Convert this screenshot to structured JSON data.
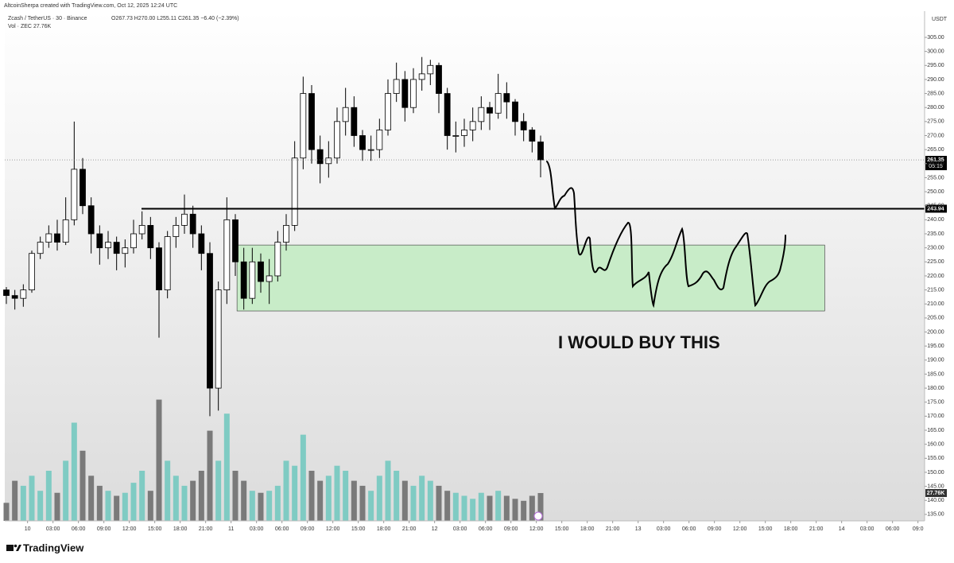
{
  "header": {
    "credit": "AltcoinSherpa created with TradingView.com, Oct 12, 2025 12:24 UTC",
    "symbol": "Zcash / TetherUS · 30 · Binance",
    "ohlc": "O267.73 H270.00 L255.11 C261.35 −6.40 (−2.39%)",
    "volume_label": "Vol · ZEC",
    "volume_value": "27.76K",
    "currency": "USDT"
  },
  "chart_data": {
    "type": "candlestick",
    "annotation": "I WOULD BUY THIS",
    "x": [
      0,
      2,
      4,
      6,
      8,
      10,
      12,
      14,
      16,
      18,
      20,
      22,
      24,
      26,
      28,
      30,
      32,
      34,
      36,
      38,
      40,
      42,
      44,
      46,
      48,
      50,
      52,
      54,
      56,
      58,
      60,
      62,
      64,
      66,
      68,
      70,
      72,
      74,
      76,
      78,
      80,
      82,
      84,
      86,
      88,
      90,
      92,
      94,
      96,
      98,
      100,
      102,
      104,
      106,
      108,
      110,
      112,
      114,
      116,
      118,
      120,
      122,
      124,
      126
    ],
    "ohlc": [
      [
        215,
        216,
        210,
        213
      ],
      [
        213,
        215,
        208,
        212
      ],
      [
        212,
        217,
        209,
        215
      ],
      [
        215,
        229,
        214,
        228
      ],
      [
        228,
        234,
        226,
        232
      ],
      [
        232,
        238,
        230,
        235
      ],
      [
        235,
        240,
        229,
        232
      ],
      [
        232,
        248,
        231,
        240
      ],
      [
        240,
        275,
        238,
        258
      ],
      [
        258,
        262,
        242,
        245
      ],
      [
        245,
        248,
        228,
        235
      ],
      [
        235,
        238,
        224,
        230
      ],
      [
        230,
        236,
        226,
        232
      ],
      [
        232,
        234,
        222,
        228
      ],
      [
        228,
        233,
        223,
        230
      ],
      [
        230,
        240,
        228,
        235
      ],
      [
        235,
        243,
        233,
        238
      ],
      [
        238,
        241,
        226,
        230
      ],
      [
        230,
        232,
        198,
        215
      ],
      [
        215,
        236,
        212,
        234
      ],
      [
        234,
        241,
        230,
        238
      ],
      [
        238,
        249,
        235,
        242
      ],
      [
        242,
        245,
        230,
        235
      ],
      [
        235,
        238,
        222,
        228
      ],
      [
        228,
        232,
        170,
        180
      ],
      [
        180,
        218,
        172,
        215
      ],
      [
        215,
        248,
        210,
        240
      ],
      [
        240,
        242,
        220,
        225
      ],
      [
        225,
        230,
        208,
        212
      ],
      [
        212,
        230,
        210,
        225
      ],
      [
        225,
        228,
        214,
        218
      ],
      [
        218,
        226,
        210,
        220
      ],
      [
        220,
        236,
        218,
        232
      ],
      [
        232,
        242,
        229,
        238
      ],
      [
        238,
        268,
        236,
        262
      ],
      [
        262,
        291,
        258,
        285
      ],
      [
        285,
        288,
        260,
        265
      ],
      [
        265,
        270,
        253,
        260
      ],
      [
        260,
        268,
        255,
        262
      ],
      [
        262,
        280,
        260,
        275
      ],
      [
        275,
        287,
        270,
        280
      ],
      [
        280,
        284,
        266,
        270
      ],
      [
        270,
        272,
        261,
        265
      ],
      [
        265,
        270,
        261,
        265
      ],
      [
        265,
        276,
        262,
        272
      ],
      [
        272,
        290,
        270,
        285
      ],
      [
        285,
        296,
        282,
        290
      ],
      [
        290,
        293,
        275,
        280
      ],
      [
        280,
        294,
        278,
        290
      ],
      [
        290,
        298,
        286,
        292
      ],
      [
        292,
        297,
        288,
        295
      ],
      [
        295,
        296,
        278,
        285
      ],
      [
        285,
        287,
        265,
        270
      ],
      [
        270,
        275,
        264,
        270
      ],
      [
        270,
        276,
        266,
        272
      ],
      [
        272,
        280,
        268,
        275
      ],
      [
        275,
        284,
        272,
        280
      ],
      [
        280,
        282,
        272,
        278
      ],
      [
        278,
        292,
        276,
        285
      ],
      [
        285,
        289,
        276,
        282
      ],
      [
        282,
        283,
        270,
        275
      ],
      [
        275,
        278,
        268,
        272
      ],
      [
        272,
        273,
        264,
        268
      ],
      [
        267.73,
        270,
        255.11,
        261.35
      ]
    ],
    "volumes": [
      18,
      40,
      35,
      45,
      30,
      50,
      28,
      60,
      98,
      70,
      45,
      35,
      30,
      25,
      28,
      38,
      50,
      30,
      121,
      60,
      45,
      35,
      40,
      50,
      90,
      60,
      107,
      50,
      40,
      30,
      28,
      30,
      35,
      60,
      55,
      86,
      50,
      40,
      45,
      55,
      50,
      40,
      35,
      30,
      45,
      60,
      50,
      40,
      35,
      45,
      40,
      35,
      30,
      28,
      25,
      22,
      28,
      25,
      30,
      25,
      22,
      20,
      25,
      27.76
    ],
    "volume_value_label": "27.76K",
    "last_price": 261.35,
    "countdown": "05:15",
    "level": 243.94,
    "zone": {
      "low": 207.5,
      "high": 231,
      "x_start": 54.4,
      "x_end": 193,
      "color": "#c8ecc8"
    },
    "up_color": "#ffffff",
    "down_color": "#000000",
    "volume_up_color": "#7fcbc3",
    "volume_down_color": "#7a7a7a",
    "xlim": [
      0,
      216
    ],
    "ylim": [
      132.7,
      314.35
    ],
    "yticks": [
      {
        "value": 305,
        "label": "305.00"
      },
      {
        "value": 300,
        "label": "300.00"
      },
      {
        "value": 295,
        "label": "295.00"
      },
      {
        "value": 290,
        "label": "290.00"
      },
      {
        "value": 285,
        "label": "285.00"
      },
      {
        "value": 280,
        "label": "280.00"
      },
      {
        "value": 275,
        "label": "275.00"
      },
      {
        "value": 270,
        "label": "270.00"
      },
      {
        "value": 265,
        "label": "265.00"
      },
      {
        "value": 260,
        "label": "260.00"
      },
      {
        "value": 255,
        "label": "255.00"
      },
      {
        "value": 250,
        "label": "250.00"
      },
      {
        "value": 245,
        "label": "245.00"
      },
      {
        "value": 240,
        "label": "240.00"
      },
      {
        "value": 235,
        "label": "235.00"
      },
      {
        "value": 230,
        "label": "230.00"
      },
      {
        "value": 225,
        "label": "225.00"
      },
      {
        "value": 220,
        "label": "220.00"
      },
      {
        "value": 215,
        "label": "215.00"
      },
      {
        "value": 210,
        "label": "210.00"
      },
      {
        "value": 205,
        "label": "205.00"
      },
      {
        "value": 200,
        "label": "200.00"
      },
      {
        "value": 195,
        "label": "195.00"
      },
      {
        "value": 190,
        "label": "190.00"
      },
      {
        "value": 185,
        "label": "185.00"
      },
      {
        "value": 180,
        "label": "180.00"
      },
      {
        "value": 175,
        "label": "175.00"
      },
      {
        "value": 170,
        "label": "170.00"
      },
      {
        "value": 165,
        "label": "165.00"
      },
      {
        "value": 160,
        "label": "160.00"
      },
      {
        "value": 155,
        "label": "155.00"
      },
      {
        "value": 150,
        "label": "150.00"
      },
      {
        "value": 145,
        "label": "145.00"
      },
      {
        "value": 140,
        "label": "140.00"
      },
      {
        "value": 135,
        "label": "135.00"
      }
    ],
    "xticks": [
      {
        "value": 5,
        "label": "10"
      },
      {
        "value": 11,
        "label": "03:00"
      },
      {
        "value": 17,
        "label": "06:00"
      },
      {
        "value": 23,
        "label": "09:00"
      },
      {
        "value": 29,
        "label": "12:00"
      },
      {
        "value": 35,
        "label": "15:00"
      },
      {
        "value": 41,
        "label": "18:00"
      },
      {
        "value": 47,
        "label": "21:00"
      },
      {
        "value": 53,
        "label": "11"
      },
      {
        "value": 59,
        "label": "03:00"
      },
      {
        "value": 65,
        "label": "06:00"
      },
      {
        "value": 71,
        "label": "09:00"
      },
      {
        "value": 77,
        "label": "12:00"
      },
      {
        "value": 83,
        "label": "15:00"
      },
      {
        "value": 89,
        "label": "18:00"
      },
      {
        "value": 95,
        "label": "21:00"
      },
      {
        "value": 101,
        "label": "12"
      },
      {
        "value": 107,
        "label": "03:00"
      },
      {
        "value": 113,
        "label": "06:00"
      },
      {
        "value": 119,
        "label": "09:00"
      },
      {
        "value": 125,
        "label": "12:00"
      },
      {
        "value": 131,
        "label": "15:00"
      },
      {
        "value": 137,
        "label": "18:00"
      },
      {
        "value": 143,
        "label": "21:00"
      },
      {
        "value": 149,
        "label": "13"
      },
      {
        "value": 155,
        "label": "03:00"
      },
      {
        "value": 161,
        "label": "06:00"
      },
      {
        "value": 167,
        "label": "09:00"
      },
      {
        "value": 173,
        "label": "12:00"
      },
      {
        "value": 179,
        "label": "15:00"
      },
      {
        "value": 185,
        "label": "18:00"
      },
      {
        "value": 191,
        "label": "21:00"
      },
      {
        "value": 197,
        "label": "14"
      },
      {
        "value": 203,
        "label": "03:00"
      },
      {
        "value": 209,
        "label": "06:00"
      },
      {
        "value": 215,
        "label": "09:0"
      }
    ]
  }
}
